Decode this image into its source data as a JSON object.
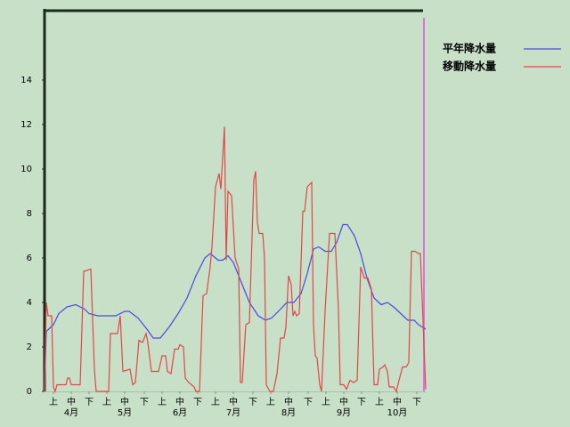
{
  "chart_data": {
    "type": "line",
    "legend": "top-right",
    "background": "#c8dfc8",
    "xlim": [
      0,
      214
    ],
    "ylim": [
      0,
      17.12
    ],
    "yticks": [
      0,
      2,
      4,
      6,
      8,
      10,
      12,
      14
    ],
    "xticks": [
      {
        "value": 5,
        "label": "上"
      },
      {
        "value": 15,
        "label": "中"
      },
      {
        "value": 25,
        "label": "下"
      },
      {
        "value": 35,
        "label": "上"
      },
      {
        "value": 45,
        "label": "中"
      },
      {
        "value": 56,
        "label": "下"
      },
      {
        "value": 66,
        "label": "上"
      },
      {
        "value": 76,
        "label": "中"
      },
      {
        "value": 86,
        "label": "下"
      },
      {
        "value": 96,
        "label": "上"
      },
      {
        "value": 106,
        "label": "中"
      },
      {
        "value": 117,
        "label": "下"
      },
      {
        "value": 127,
        "label": "上"
      },
      {
        "value": 137,
        "label": "中"
      },
      {
        "value": 148,
        "label": "下"
      },
      {
        "value": 158,
        "label": "上"
      },
      {
        "value": 168,
        "label": "中"
      },
      {
        "value": 178,
        "label": "下"
      },
      {
        "value": 188,
        "label": "上"
      },
      {
        "value": 198,
        "label": "中"
      },
      {
        "value": 209,
        "label": "下"
      }
    ],
    "months": [
      {
        "value": 15,
        "label": "4月"
      },
      {
        "value": 45,
        "label": "5月"
      },
      {
        "value": 76,
        "label": "6月"
      },
      {
        "value": 106,
        "label": "7月"
      },
      {
        "value": 137,
        "label": "8月"
      },
      {
        "value": 168,
        "label": "9月"
      },
      {
        "value": 198,
        "label": "10月"
      }
    ],
    "series": [
      {
        "name": "平年降水量",
        "color": "#4a4ae0",
        "x": [
          0,
          1,
          5,
          8,
          12.5,
          17.5,
          22.5,
          25,
          30,
          40,
          45,
          47.5,
          52.5,
          57.5,
          61,
          65,
          70,
          75,
          80,
          85,
          90,
          93,
          97.5,
          100,
          103,
          106,
          110,
          115,
          120,
          124,
          127.5,
          132.5,
          136,
          140,
          144,
          147.5,
          151,
          154,
          157.5,
          161,
          164,
          167.5,
          170,
          174,
          177.5,
          181,
          185,
          189,
          192.5,
          196,
          200,
          204,
          207.5,
          210,
          214
        ],
        "values": [
          0,
          2.7,
          3.0,
          3.5,
          3.8,
          3.9,
          3.7,
          3.5,
          3.4,
          3.4,
          3.6,
          3.6,
          3.3,
          2.8,
          2.4,
          2.4,
          2.9,
          3.5,
          4.2,
          5.2,
          6.0,
          6.2,
          5.9,
          5.9,
          6.1,
          5.8,
          5.0,
          4.0,
          3.4,
          3.2,
          3.3,
          3.7,
          4.0,
          4.0,
          4.4,
          5.3,
          6.4,
          6.5,
          6.3,
          6.3,
          6.7,
          7.5,
          7.5,
          7.0,
          6.2,
          5.1,
          4.2,
          3.9,
          4.0,
          3.8,
          3.5,
          3.2,
          3.2,
          3.0,
          2.8
        ]
      },
      {
        "name": "移動降水量",
        "color": "#e04848",
        "x": [
          0,
          1,
          2,
          4,
          5,
          6,
          7,
          12,
          13,
          14,
          15,
          20,
          22,
          26,
          28,
          29,
          36,
          37,
          41,
          42.5,
          44,
          48,
          49.5,
          51,
          53,
          55,
          57,
          58,
          60,
          64,
          66,
          68,
          69,
          71,
          73,
          75,
          76,
          78,
          79,
          81,
          84,
          85,
          87,
          89,
          91,
          93,
          94,
          96,
          98,
          99,
          101,
          102,
          103,
          105,
          107,
          109,
          110,
          111,
          113,
          115,
          117.5,
          118.5,
          119.5,
          120.5,
          122.5,
          123.5,
          124.5,
          126.5,
          128.5,
          130.5,
          132.5,
          134.5,
          135.5,
          137,
          138.5,
          139.5,
          140.5,
          141.5,
          143,
          145,
          146,
          147.5,
          150,
          151,
          152,
          153,
          154.5,
          155.5,
          157.5,
          160,
          163,
          165,
          166,
          168,
          169.5,
          171.5,
          173.5,
          175.5,
          177.5,
          179.5,
          181.5,
          183.5,
          185,
          187,
          188,
          190,
          191,
          192.5,
          193.5,
          196,
          197.5,
          199,
          201,
          203,
          204.5,
          206,
          208,
          210,
          211,
          214
        ],
        "values": [
          0,
          4.0,
          3.4,
          3.4,
          0.2,
          0,
          0.3,
          0.3,
          0.6,
          0.6,
          0.3,
          0.3,
          5.4,
          5.5,
          1.0,
          0,
          0,
          2.6,
          2.6,
          3.4,
          0.9,
          1.0,
          0.3,
          0.4,
          2.3,
          2.2,
          2.6,
          2.2,
          0.9,
          0.9,
          1.6,
          1.6,
          0.9,
          0.8,
          1.9,
          1.9,
          2.1,
          2.0,
          0.6,
          0.4,
          0.2,
          0,
          0,
          4.3,
          4.4,
          5.6,
          6.5,
          9.2,
          9.8,
          9.1,
          11.9,
          5.9,
          9.0,
          8.8,
          6.0,
          5.5,
          0.4,
          0.4,
          3.0,
          3.1,
          9.5,
          9.9,
          7.6,
          7.1,
          7.1,
          6.0,
          0.3,
          0,
          0,
          0.8,
          2.4,
          2.4,
          2.9,
          5.2,
          4.8,
          3.4,
          3.6,
          3.4,
          3.5,
          8.1,
          8.1,
          9.2,
          9.4,
          3.0,
          1.6,
          1.5,
          0.3,
          0,
          3.6,
          7.1,
          7.1,
          3.7,
          0.3,
          0.3,
          0.1,
          0.5,
          0.4,
          0.5,
          5.6,
          5.1,
          5.1,
          4.6,
          0.3,
          0.3,
          1.0,
          1.1,
          1.2,
          0.9,
          0.2,
          0.2,
          0,
          0.5,
          1.1,
          1.1,
          1.3,
          6.3,
          6.3,
          6.2,
          6.2,
          0.1
        ]
      }
    ]
  }
}
